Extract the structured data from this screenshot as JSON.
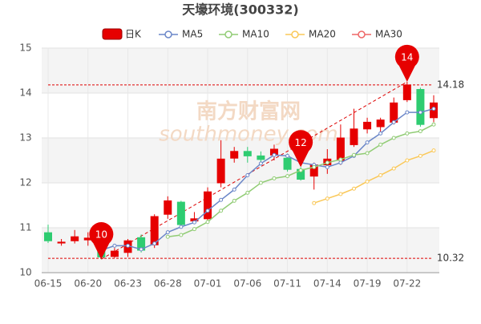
{
  "chart_data": {
    "type": "candlestick",
    "title": "天壕环境(300332)",
    "watermark": [
      "南方财富网",
      "southmoney.com"
    ],
    "categories": [
      "06-15",
      null,
      null,
      "06-20",
      null,
      null,
      "06-23",
      null,
      null,
      "06-28",
      null,
      null,
      "07-01",
      null,
      null,
      "07-06",
      null,
      null,
      "07-11",
      null,
      null,
      "07-14",
      null,
      null,
      "07-19",
      null,
      null,
      "07-22",
      null,
      null
    ],
    "candle_name": "日K",
    "up_color": "#e60000",
    "down_color": "#2ecc71",
    "open": [
      10.89,
      10.66,
      10.71,
      10.73,
      10.6,
      10.36,
      10.45,
      10.78,
      10.62,
      11.3,
      11.57,
      11.15,
      11.2,
      12.0,
      12.55,
      12.7,
      12.6,
      12.62,
      12.55,
      12.3,
      12.15,
      12.4,
      12.5,
      12.85,
      13.2,
      13.25,
      13.35,
      13.85,
      14.08,
      13.45
    ],
    "high": [
      11.07,
      10.75,
      10.95,
      10.9,
      10.7,
      10.55,
      10.75,
      10.85,
      11.3,
      11.7,
      11.6,
      11.35,
      11.9,
      12.95,
      12.8,
      12.8,
      12.7,
      12.85,
      12.65,
      12.35,
      12.45,
      12.75,
      13.3,
      13.65,
      13.45,
      13.45,
      13.9,
      14.25,
      14.12,
      13.95
    ],
    "low": [
      10.66,
      10.6,
      10.65,
      10.6,
      10.3,
      10.33,
      10.35,
      10.45,
      10.55,
      11.2,
      11.0,
      11.1,
      11.15,
      11.9,
      12.45,
      12.45,
      12.4,
      12.5,
      12.25,
      12.05,
      11.85,
      12.2,
      12.4,
      12.8,
      13.1,
      13.1,
      13.3,
      13.8,
      13.25,
      13.35
    ],
    "close": [
      10.71,
      10.68,
      10.8,
      10.77,
      10.35,
      10.48,
      10.71,
      10.5,
      11.25,
      11.6,
      11.07,
      11.2,
      11.8,
      12.53,
      12.7,
      12.6,
      12.52,
      12.75,
      12.3,
      12.08,
      12.4,
      12.53,
      13.0,
      13.2,
      13.35,
      13.4,
      13.78,
      14.18,
      13.3,
      13.78
    ],
    "series": [
      {
        "name": "MA5",
        "color": "#6a86c8",
        "values": [
          null,
          null,
          null,
          null,
          10.5,
          10.6,
          10.6,
          10.52,
          10.65,
          10.9,
          11.02,
          11.12,
          11.38,
          11.62,
          11.85,
          12.17,
          12.43,
          12.62,
          12.6,
          12.45,
          12.4,
          12.35,
          12.45,
          12.6,
          12.9,
          13.1,
          13.35,
          13.57,
          13.57,
          13.65
        ]
      },
      {
        "name": "MA10",
        "color": "#91cc75",
        "values": [
          null,
          null,
          null,
          null,
          null,
          null,
          null,
          null,
          null,
          10.8,
          10.84,
          10.97,
          11.13,
          11.38,
          11.6,
          11.78,
          12.0,
          12.1,
          12.15,
          12.28,
          12.35,
          12.45,
          12.52,
          12.62,
          12.66,
          12.85,
          13.0,
          13.1,
          13.15,
          13.3
        ]
      },
      {
        "name": "MA20",
        "color": "#fac858",
        "values": [
          null,
          null,
          null,
          null,
          null,
          null,
          null,
          null,
          null,
          null,
          null,
          null,
          null,
          null,
          null,
          null,
          null,
          null,
          null,
          null,
          11.55,
          11.65,
          11.75,
          11.87,
          12.03,
          12.17,
          12.32,
          12.5,
          12.6,
          12.72
        ]
      },
      {
        "name": "MA30",
        "color": "#ee6666",
        "values": [
          null,
          null,
          null,
          null,
          null,
          null,
          null,
          null,
          null,
          null,
          null,
          null,
          null,
          null,
          null,
          null,
          null,
          null,
          null,
          null,
          null,
          null,
          null,
          null,
          null,
          null,
          null,
          null,
          null,
          null
        ]
      }
    ],
    "reference_lines": [
      14.18,
      10.32
    ],
    "markers": [
      {
        "label": "10",
        "at": 4,
        "value": 10.3
      },
      {
        "label": "12",
        "at": 19,
        "value": 12.35
      },
      {
        "label": "14",
        "at": 27,
        "value": 14.25
      }
    ],
    "ylim": [
      10,
      15
    ],
    "yticks": [
      10,
      11,
      12,
      13,
      14,
      15
    ],
    "grid": true
  }
}
